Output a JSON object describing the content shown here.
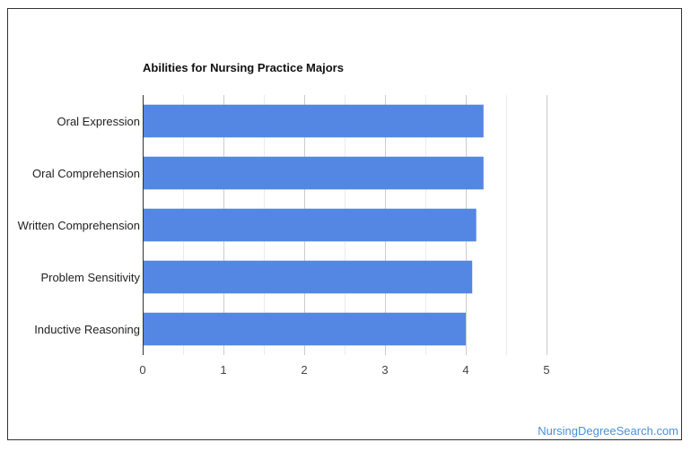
{
  "chart_data": {
    "type": "bar",
    "orientation": "horizontal",
    "title": "Abilities for Nursing Practice Majors",
    "categories": [
      "Oral Expression",
      "Oral Comprehension",
      "Written Comprehension",
      "Problem Sensitivity",
      "Inductive Reasoning"
    ],
    "values": [
      4.22,
      4.22,
      4.13,
      4.08,
      4.0
    ],
    "xlim": [
      0,
      5
    ],
    "xticks": [
      "0",
      "1",
      "2",
      "3",
      "4",
      "5"
    ],
    "grid": true,
    "bar_color": "#5486e3"
  },
  "footer": {
    "source_label": "NursingDegreeSearch.com"
  }
}
